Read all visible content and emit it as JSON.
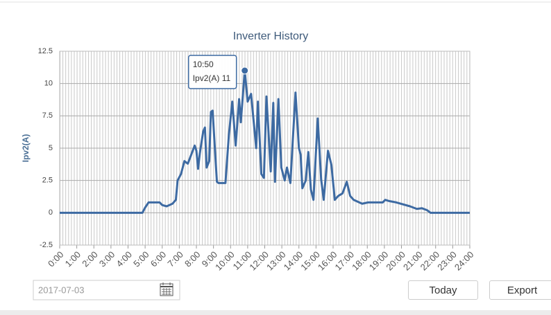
{
  "chart_data": {
    "type": "line",
    "title": "Inverter History",
    "y_label": "Ipv2(A)",
    "x": [
      0,
      4.84,
      5.0,
      5.2,
      5.85,
      6.0,
      6.26,
      6.6,
      6.8,
      6.9,
      7.1,
      7.3,
      7.5,
      7.7,
      7.9,
      8.0,
      8.1,
      8.2,
      8.4,
      8.5,
      8.6,
      8.75,
      8.85,
      8.95,
      9.2,
      9.3,
      9.7,
      9.9,
      10.1,
      10.3,
      10.5,
      10.6,
      10.83,
      11.0,
      11.2,
      11.5,
      11.6,
      11.8,
      11.95,
      12.1,
      12.35,
      12.5,
      12.6,
      12.8,
      12.97,
      13.17,
      13.3,
      13.5,
      13.8,
      14.0,
      14.1,
      14.2,
      14.4,
      14.55,
      14.7,
      14.85,
      15.1,
      15.3,
      15.45,
      15.7,
      15.9,
      16.1,
      16.3,
      16.55,
      16.8,
      17.0,
      17.2,
      17.7,
      18.05,
      18.9,
      19.05,
      19.3,
      19.7,
      20.5,
      20.9,
      21.2,
      21.5,
      21.7,
      24
    ],
    "series": [
      {
        "name": "Ipv2(A)",
        "color": "#3d6aa2",
        "values": [
          0,
          0,
          0.4,
          0.8,
          0.8,
          0.6,
          0.5,
          0.7,
          1.0,
          2.5,
          3.0,
          4.0,
          3.8,
          4.5,
          5.2,
          4.8,
          3.4,
          4.6,
          6.3,
          6.6,
          3.5,
          4.0,
          7.8,
          7.9,
          2.4,
          2.3,
          2.3,
          6.0,
          8.6,
          5.2,
          8.8,
          7.0,
          11,
          8.6,
          9.2,
          5.0,
          8.6,
          3.0,
          2.7,
          9.0,
          3.2,
          8.5,
          2.4,
          8.8,
          3.5,
          2.5,
          3.5,
          2.3,
          9.3,
          5.0,
          4.5,
          1.9,
          2.5,
          4.7,
          1.8,
          1.0,
          7.3,
          2.6,
          1.0,
          4.8,
          3.7,
          1.0,
          1.3,
          1.5,
          2.4,
          1.3,
          1.0,
          0.7,
          0.8,
          0.8,
          1.0,
          0.9,
          0.8,
          0.5,
          0.3,
          0.35,
          0.2,
          0,
          0
        ]
      }
    ],
    "xlim": [
      0,
      24
    ],
    "xticks": [
      {
        "value": 0,
        "label": "0:00"
      },
      {
        "value": 1,
        "label": "1:00"
      },
      {
        "value": 2,
        "label": "2:00"
      },
      {
        "value": 3,
        "label": "3:00"
      },
      {
        "value": 4,
        "label": "4:00"
      },
      {
        "value": 5,
        "label": "5:00"
      },
      {
        "value": 6,
        "label": "6:00"
      },
      {
        "value": 7,
        "label": "7:00"
      },
      {
        "value": 8,
        "label": "8:00"
      },
      {
        "value": 9,
        "label": "9:00"
      },
      {
        "value": 10,
        "label": "10:00"
      },
      {
        "value": 11,
        "label": "11:00"
      },
      {
        "value": 12,
        "label": "12:00"
      },
      {
        "value": 13,
        "label": "13:00"
      },
      {
        "value": 14,
        "label": "14:00"
      },
      {
        "value": 15,
        "label": "15:00"
      },
      {
        "value": 16,
        "label": "16:00"
      },
      {
        "value": 17,
        "label": "17:00"
      },
      {
        "value": 18,
        "label": "18:00"
      },
      {
        "value": 19,
        "label": "19:00"
      },
      {
        "value": 20,
        "label": "20:00"
      },
      {
        "value": 21,
        "label": "21:00"
      },
      {
        "value": 22,
        "label": "22:00"
      },
      {
        "value": 23,
        "label": "23:00"
      },
      {
        "value": 24,
        "label": "24:00"
      }
    ],
    "ylim": [
      -2.5,
      12.5
    ],
    "yticks": [
      -2.5,
      0,
      2.5,
      5,
      7.5,
      10,
      12.5
    ],
    "grid": true,
    "tooltip": {
      "time": "10:50",
      "value": 11,
      "index": 32
    }
  },
  "controls": {
    "date": "2017-07-03",
    "today": "Today",
    "export": "Export"
  }
}
